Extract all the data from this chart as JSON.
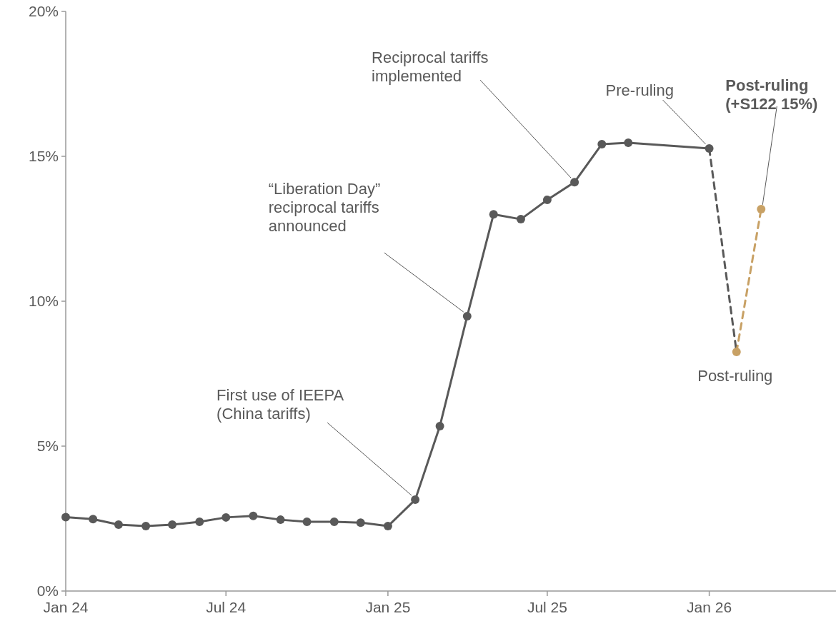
{
  "chart_data": {
    "type": "line",
    "x": [
      "2024-01",
      "2024-02",
      "2024-03",
      "2024-04",
      "2024-05",
      "2024-06",
      "2024-07",
      "2024-08",
      "2024-09",
      "2024-10",
      "2024-11",
      "2024-12",
      "2025-01",
      "2025-02",
      "2025-03",
      "2025-04",
      "2025-05",
      "2025-06",
      "2025-07",
      "2025-08",
      "2025-09",
      "2025-10",
      "2026-01"
    ],
    "series": [
      {
        "color": "#595959",
        "line_style": "solid",
        "marker": "circle",
        "values": [
          2.55,
          2.48,
          2.29,
          2.24,
          2.29,
          2.39,
          2.54,
          2.59,
          2.46,
          2.39,
          2.39,
          2.36,
          2.24,
          3.15,
          5.69,
          9.48,
          13.0,
          12.83,
          13.5,
          14.11,
          15.42,
          15.47,
          15.27
        ]
      },
      {
        "color": "#595959",
        "line_style": "dashed",
        "marker": "none",
        "x": [
          "2026-01",
          "2026-02"
        ],
        "values": [
          15.27,
          8.25
        ]
      },
      {
        "color": "#c8a165",
        "line_style": "dashed",
        "marker": "circle",
        "x": [
          "2026-02",
          "2026-03"
        ],
        "values": [
          8.25,
          13.18
        ]
      }
    ],
    "xlim": [
      "2024-01",
      "2026-05-25"
    ],
    "xticks": [
      {
        "value": "2024-01",
        "label": "Jan 24"
      },
      {
        "value": "2024-07",
        "label": "Jul 24"
      },
      {
        "value": "2025-01",
        "label": "Jan 25"
      },
      {
        "value": "2025-07",
        "label": "Jul 25"
      },
      {
        "value": "2026-01",
        "label": "Jan 26"
      }
    ],
    "ylim": [
      0,
      20
    ],
    "yticks": [
      {
        "value": 0,
        "label": "0%"
      },
      {
        "value": 5,
        "label": "5%"
      },
      {
        "value": 10,
        "label": "10%"
      },
      {
        "value": 15,
        "label": "15%"
      },
      {
        "value": 20,
        "label": "20%"
      }
    ],
    "grid": false,
    "annotations": [
      {
        "text": "First use of IEEPA\n(China tariffs)",
        "x": "2025-02",
        "y": 3.15
      },
      {
        "text": "“Liberation Day”\nreciprocal tariffs\nannounced",
        "x": "2025-04",
        "y": 9.48
      },
      {
        "text": "Reciprocal tariffs\nimplemented",
        "x": "2025-08",
        "y": 14.11
      },
      {
        "text": "Pre-ruling",
        "x": "2026-01",
        "y": 15.27
      },
      {
        "text": "Post-ruling",
        "x": "2026-02",
        "y": 8.25
      },
      {
        "text": "Post-ruling\n(+S122 15%)",
        "x": "2026-03",
        "y": 13.18
      }
    ]
  }
}
